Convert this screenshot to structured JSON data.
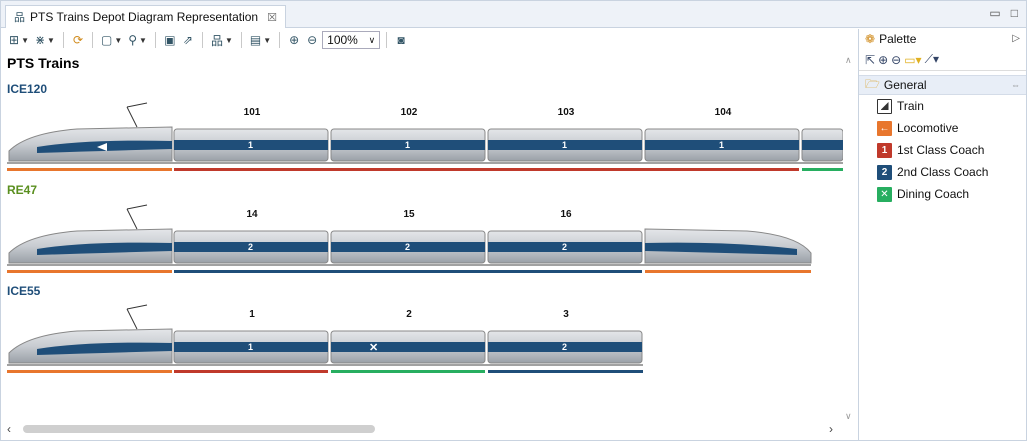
{
  "tab": {
    "title": "PTS Trains Depot Diagram Representation",
    "close": "☒"
  },
  "window_buttons": {
    "minimize": "▭",
    "maximize": "□"
  },
  "toolbar": {
    "zoom_value": "100%"
  },
  "diagram": {
    "title": "PTS Trains",
    "trains": [
      {
        "name": "ICE120",
        "color": "#1f4e79",
        "coach_numbers": [
          "101",
          "102",
          "103",
          "104"
        ]
      },
      {
        "name": "RE47",
        "color": "#5a8f1f",
        "coach_numbers": [
          "14",
          "15",
          "16"
        ]
      },
      {
        "name": "ICE55",
        "color": "#1f4e79",
        "coach_numbers": [
          "1",
          "2",
          "3"
        ]
      }
    ]
  },
  "palette": {
    "title": "Palette",
    "drawer": "General",
    "items": [
      {
        "label": "Train",
        "icon": "train-icon",
        "color": "#333333"
      },
      {
        "label": "Locomotive",
        "icon": "locomotive-icon",
        "color": "#e8762d"
      },
      {
        "label": "1st Class Coach",
        "icon": "first-class-icon",
        "color": "#c0392b",
        "glyph": "1"
      },
      {
        "label": "2nd Class Coach",
        "icon": "second-class-icon",
        "color": "#1f4e79",
        "glyph": "2"
      },
      {
        "label": "Dining Coach",
        "icon": "dining-icon",
        "color": "#27ae60",
        "glyph": "✕"
      }
    ]
  }
}
